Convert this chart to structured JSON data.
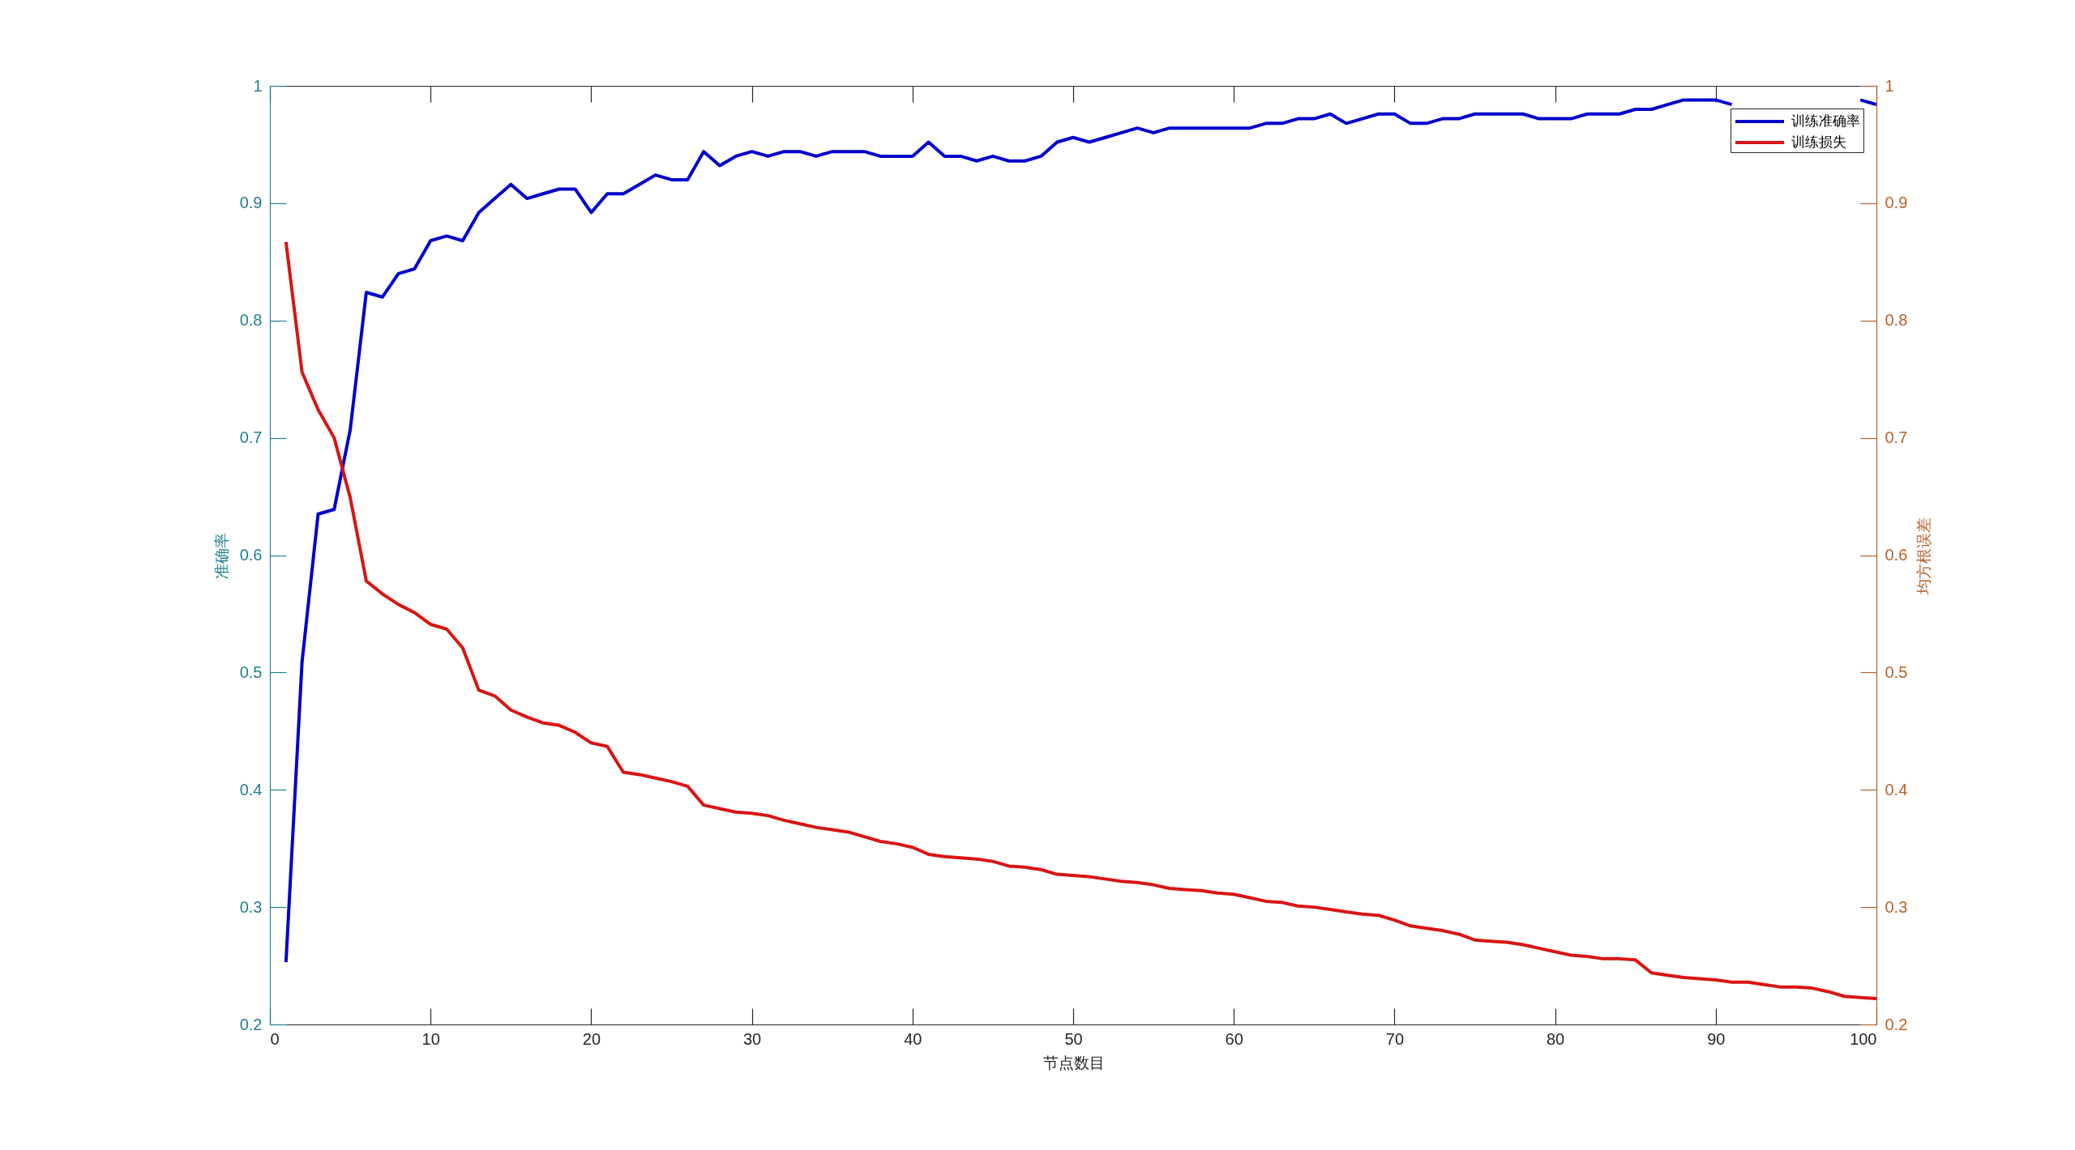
{
  "chart_data": {
    "type": "line",
    "xlabel": "节点数目",
    "ylabel": "准确率",
    "y2label": "均方根误差",
    "x": [
      1,
      2,
      3,
      4,
      5,
      6,
      7,
      8,
      9,
      10,
      11,
      12,
      13,
      14,
      15,
      16,
      17,
      18,
      19,
      20,
      21,
      22,
      23,
      24,
      25,
      26,
      27,
      28,
      29,
      30,
      31,
      32,
      33,
      34,
      35,
      36,
      37,
      38,
      39,
      40,
      41,
      42,
      43,
      44,
      45,
      46,
      47,
      48,
      49,
      50,
      51,
      52,
      53,
      54,
      55,
      56,
      57,
      58,
      59,
      60,
      61,
      62,
      63,
      64,
      65,
      66,
      67,
      68,
      69,
      70,
      71,
      72,
      73,
      74,
      75,
      76,
      77,
      78,
      79,
      80,
      81,
      82,
      83,
      84,
      85,
      86,
      87,
      88,
      89,
      90,
      91,
      92,
      93,
      94,
      95,
      96,
      97,
      98,
      99,
      100
    ],
    "xlim": [
      0,
      100
    ],
    "xticks": [
      0,
      10,
      20,
      30,
      40,
      50,
      60,
      70,
      80,
      90,
      100
    ],
    "ylim": [
      0.2,
      1
    ],
    "yticks": [
      0.2,
      0.3,
      0.4,
      0.5,
      0.6,
      0.7,
      0.8,
      0.9,
      1
    ],
    "y2lim": [
      0.2,
      1
    ],
    "y2ticks": [
      0.2,
      0.3,
      0.4,
      0.5,
      0.6,
      0.7,
      0.8,
      0.9,
      1
    ],
    "grid": false,
    "legend": "top right",
    "series": [
      {
        "name": "训练准确率",
        "color": "#0000cc",
        "values": [
          0.253,
          0.509,
          0.635,
          0.639,
          0.707,
          0.824,
          0.82,
          0.84,
          0.844,
          0.868,
          0.872,
          0.868,
          0.892,
          0.904,
          0.916,
          0.904,
          0.908,
          0.912,
          0.912,
          0.892,
          0.908,
          0.908,
          0.916,
          0.924,
          0.92,
          0.92,
          0.944,
          0.932,
          0.94,
          0.944,
          0.94,
          0.944,
          0.944,
          0.94,
          0.944,
          0.944,
          0.944,
          0.94,
          0.94,
          0.94,
          0.952,
          0.94,
          0.94,
          0.936,
          0.94,
          0.936,
          0.936,
          0.94,
          0.952,
          0.956,
          0.952,
          0.956,
          0.96,
          0.964,
          0.96,
          0.964,
          0.964,
          0.964,
          0.964,
          0.964,
          0.964,
          0.968,
          0.968,
          0.972,
          0.972,
          0.976,
          0.968,
          0.972,
          0.976,
          0.976,
          0.968,
          0.968,
          0.972,
          0.972,
          0.976,
          0.976,
          0.976,
          0.976,
          0.972,
          0.972,
          0.972,
          0.976,
          0.976,
          0.976,
          0.98,
          0.98,
          0.984,
          0.988,
          0.988,
          0.988,
          0.984,
          null,
          null,
          null,
          null,
          null,
          null,
          null,
          0.988,
          0.984
        ]
      },
      {
        "name": "训练损失",
        "color": "#d91414",
        "axis": "y2",
        "values": [
          0.867,
          0.756,
          0.724,
          0.7,
          0.649,
          0.578,
          0.567,
          0.558,
          0.551,
          0.541,
          0.537,
          0.521,
          0.485,
          0.48,
          0.468,
          0.462,
          0.457,
          0.455,
          0.449,
          0.44,
          0.437,
          0.415,
          0.413,
          0.41,
          0.407,
          0.403,
          0.387,
          0.384,
          0.381,
          0.38,
          0.378,
          0.374,
          0.371,
          0.368,
          0.366,
          0.364,
          0.36,
          0.356,
          0.354,
          0.351,
          0.345,
          0.343,
          0.342,
          0.341,
          0.339,
          0.335,
          0.334,
          0.332,
          0.328,
          0.327,
          0.326,
          0.324,
          0.322,
          0.321,
          0.319,
          0.316,
          0.315,
          0.314,
          0.312,
          0.311,
          0.308,
          0.305,
          0.304,
          0.301,
          0.3,
          0.298,
          0.296,
          0.294,
          0.293,
          0.289,
          0.284,
          0.282,
          0.28,
          0.277,
          0.272,
          0.271,
          0.27,
          0.268,
          0.265,
          0.262,
          0.259,
          0.258,
          0.256,
          0.256,
          0.255,
          0.244,
          0.242,
          0.24,
          0.239,
          0.238,
          0.236,
          0.236,
          0.234,
          0.232,
          0.232,
          0.231,
          0.228,
          0.224,
          0.223,
          0.222
        ]
      }
    ]
  }
}
